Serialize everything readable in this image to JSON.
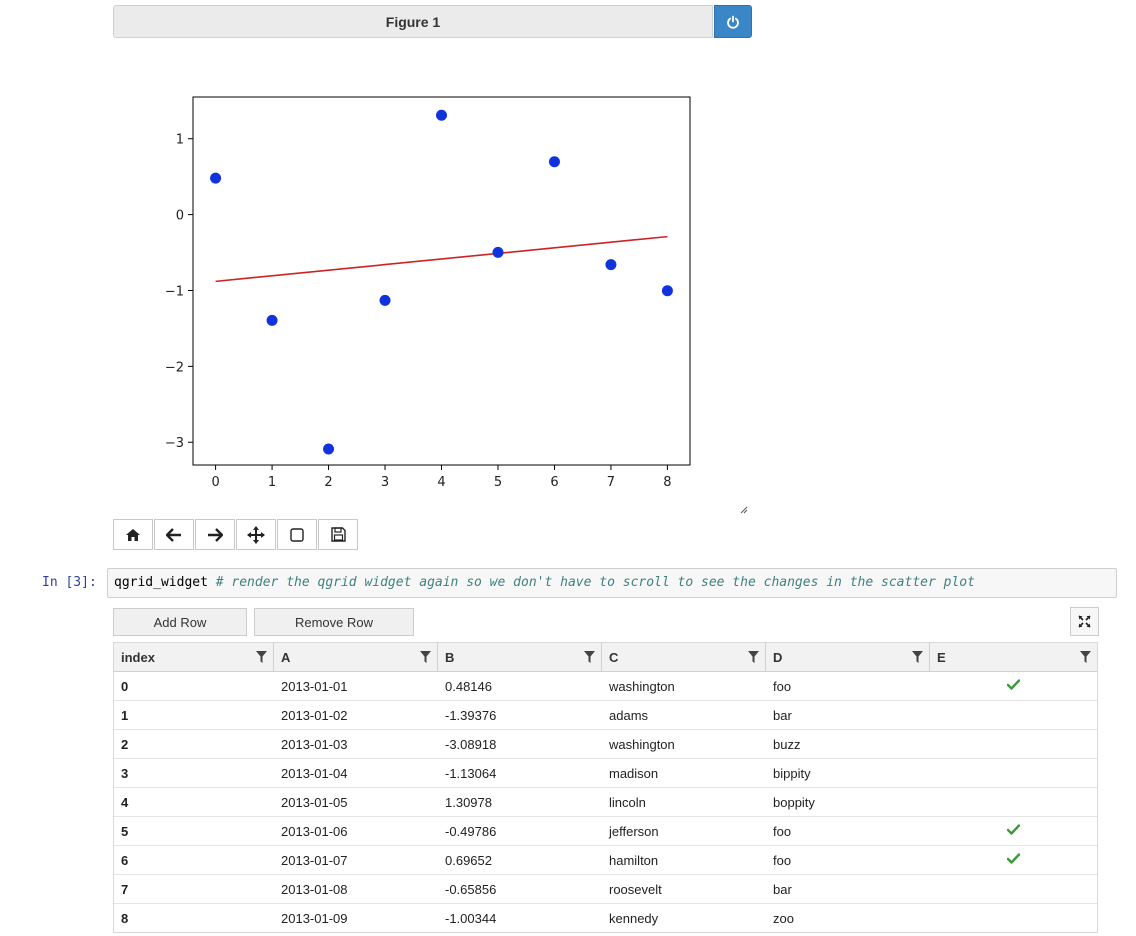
{
  "figure": {
    "title": "Figure 1"
  },
  "chart_data": {
    "type": "scatter",
    "title": "",
    "xlabel": "",
    "ylabel": "",
    "xlim": [
      -0.4,
      8.4
    ],
    "ylim": [
      -3.3,
      1.55
    ],
    "x_ticks": [
      0,
      1,
      2,
      3,
      4,
      5,
      6,
      7,
      8
    ],
    "y_ticks": [
      1,
      0,
      -1,
      -2,
      -3
    ],
    "y_tick_labels": [
      "1",
      "0",
      "−1",
      "−2",
      "−3"
    ],
    "series": [
      {
        "kind": "scatter",
        "color": "#1133dd",
        "x": [
          0,
          1,
          2,
          3,
          4,
          5,
          6,
          7,
          8
        ],
        "y": [
          0.48146,
          -1.39376,
          -3.08918,
          -1.13064,
          1.30978,
          -0.49786,
          0.69652,
          -0.65856,
          -1.00344
        ]
      },
      {
        "kind": "line",
        "color": "#cc2222",
        "x": [
          0,
          8
        ],
        "y": [
          -0.88,
          -0.29
        ]
      }
    ],
    "grid": false,
    "legend": "none"
  },
  "toolbar": {
    "icons": [
      "home-icon",
      "back-arrow-icon",
      "forward-arrow-icon",
      "pan-icon",
      "zoom-rect-icon",
      "save-icon"
    ]
  },
  "cell": {
    "prompt": "In [3]:",
    "code_var": "qgrid_widget",
    "code_comment": "# render the qgrid widget again so we don't have to scroll to see the changes in the scatter plot"
  },
  "qgrid": {
    "add_row_label": "Add Row",
    "remove_row_label": "Remove Row",
    "columns": [
      "index",
      "A",
      "B",
      "C",
      "D",
      "E"
    ],
    "rows": [
      {
        "index": "0",
        "A": "2013-01-01",
        "B": "0.48146",
        "C": "washington",
        "D": "foo",
        "E": true
      },
      {
        "index": "1",
        "A": "2013-01-02",
        "B": "-1.39376",
        "C": "adams",
        "D": "bar",
        "E": false
      },
      {
        "index": "2",
        "A": "2013-01-03",
        "B": "-3.08918",
        "C": "washington",
        "D": "buzz",
        "E": false
      },
      {
        "index": "3",
        "A": "2013-01-04",
        "B": "-1.13064",
        "C": "madison",
        "D": "bippity",
        "E": false
      },
      {
        "index": "4",
        "A": "2013-01-05",
        "B": "1.30978",
        "C": "lincoln",
        "D": "boppity",
        "E": false
      },
      {
        "index": "5",
        "A": "2013-01-06",
        "B": "-0.49786",
        "C": "jefferson",
        "D": "foo",
        "E": true
      },
      {
        "index": "6",
        "A": "2013-01-07",
        "B": "0.69652",
        "C": "hamilton",
        "D": "foo",
        "E": true
      },
      {
        "index": "7",
        "A": "2013-01-08",
        "B": "-0.65856",
        "C": "roosevelt",
        "D": "bar",
        "E": false
      },
      {
        "index": "8",
        "A": "2013-01-09",
        "B": "-1.00344",
        "C": "kennedy",
        "D": "zoo",
        "E": false
      }
    ]
  }
}
